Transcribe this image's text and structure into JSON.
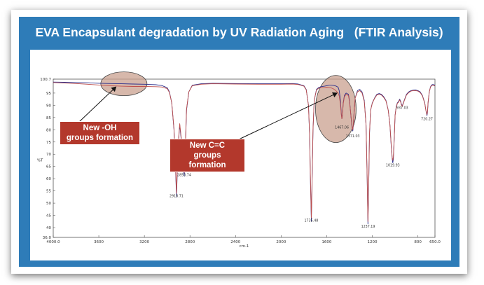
{
  "title": "EVA Encapsulant degradation by UV Radiation Aging   (FTIR Analysis)",
  "colors": {
    "slide_bg": "#2e7cb8",
    "callout_bg": "#b3382c",
    "highlight": "#c9a08f",
    "series": [
      "#2b2f8c",
      "#c0504d"
    ]
  },
  "chart_data": {
    "type": "line",
    "xlabel": "cm-1",
    "ylabel": "%T",
    "xlim": [
      4000,
      650
    ],
    "ylim": [
      36.0,
      100.7
    ],
    "x_ticks": [
      "4000.0",
      "3600",
      "3200",
      "2800",
      "2400",
      "2000",
      "1600",
      "1200",
      "800",
      "650.0"
    ],
    "x_tick_values": [
      4000,
      3600,
      3200,
      2800,
      2400,
      2000,
      1600,
      1200,
      800,
      650
    ],
    "y_ticks": [
      "100.7",
      "95",
      "90",
      "85",
      "80",
      "75",
      "70",
      "65",
      "60",
      "55",
      "50",
      "45",
      "40",
      "36.0"
    ],
    "y_tick_values": [
      100.7,
      95,
      90,
      85,
      80,
      75,
      70,
      65,
      60,
      55,
      50,
      45,
      40,
      36.0
    ],
    "peak_labels": [
      {
        "x": 2918.71,
        "y": 52.5,
        "text": "2918.71"
      },
      {
        "x": 2850.74,
        "y": 61.0,
        "text": "2850.74"
      },
      {
        "x": 1735.48,
        "y": 42.5,
        "text": "1735.48"
      },
      {
        "x": 1467.0,
        "y": 80.5,
        "text": "1467.06"
      },
      {
        "x": 1371.0,
        "y": 77.0,
        "text": "1371.03"
      },
      {
        "x": 1237.0,
        "y": 40.0,
        "text": "1237.19"
      },
      {
        "x": 1019.93,
        "y": 65.0,
        "text": "1019.93"
      },
      {
        "x": 937.0,
        "y": 88.5,
        "text": "937.03"
      },
      {
        "x": 720.27,
        "y": 84.0,
        "text": "720.27"
      }
    ],
    "series": [
      {
        "x": [
          4000,
          3900,
          3800,
          3700,
          3600,
          3500,
          3400,
          3300,
          3200,
          3100,
          3050,
          3000,
          2980,
          2960,
          2940,
          2930,
          2918,
          2905,
          2890,
          2870,
          2858,
          2850,
          2842,
          2830,
          2810,
          2780,
          2700,
          2600,
          2400,
          2200,
          2000,
          1900,
          1850,
          1800,
          1780,
          1760,
          1750,
          1742,
          1735,
          1728,
          1720,
          1710,
          1690,
          1670,
          1650,
          1620,
          1600,
          1580,
          1560,
          1540,
          1520,
          1500,
          1490,
          1480,
          1472,
          1467,
          1462,
          1455,
          1445,
          1430,
          1410,
          1400,
          1390,
          1380,
          1375,
          1371,
          1366,
          1360,
          1350,
          1330,
          1310,
          1290,
          1270,
          1255,
          1245,
          1238,
          1232,
          1225,
          1215,
          1200,
          1180,
          1160,
          1140,
          1120,
          1100,
          1080,
          1060,
          1045,
          1035,
          1025,
          1020,
          1015,
          1008,
          1000,
          990,
          980,
          970,
          960,
          950,
          945,
          940,
          937,
          932,
          920,
          900,
          880,
          860,
          840,
          820,
          800,
          780,
          760,
          740,
          730,
          724,
          720,
          716,
          710,
          700,
          690,
          680,
          670,
          660,
          650
        ],
        "y": [
          99.5,
          99.4,
          99.3,
          99.2,
          99.0,
          98.9,
          98.8,
          98.7,
          98.6,
          98.4,
          98.1,
          97.2,
          95.5,
          91.0,
          80.0,
          68.0,
          52.5,
          72.0,
          82.0,
          73.0,
          64.0,
          61.0,
          70.0,
          88.0,
          95.5,
          98.2,
          98.8,
          99.0,
          98.9,
          98.8,
          98.8,
          98.9,
          98.7,
          98.0,
          96.5,
          90.0,
          78.0,
          58.0,
          42.5,
          60.0,
          80.0,
          92.0,
          96.5,
          97.3,
          97.6,
          97.8,
          98.0,
          98.2,
          98.2,
          98.1,
          97.9,
          97.4,
          96.0,
          92.0,
          86.5,
          84.5,
          86.0,
          91.0,
          94.0,
          95.0,
          94.5,
          92.0,
          87.0,
          82.0,
          80.0,
          79.5,
          82.0,
          87.0,
          93.0,
          96.0,
          96.5,
          95.5,
          92.0,
          82.0,
          60.0,
          41.5,
          55.0,
          78.0,
          88.0,
          91.0,
          93.0,
          94.5,
          94.8,
          94.5,
          93.5,
          92.0,
          88.0,
          82.0,
          74.0,
          68.0,
          66.5,
          68.0,
          76.0,
          86.0,
          89.5,
          91.0,
          91.5,
          92.5,
          91.5,
          90.5,
          90.0,
          89.8,
          90.5,
          92.0,
          94.5,
          95.5,
          96.0,
          96.2,
          96.3,
          96.0,
          95.5,
          94.0,
          91.0,
          88.0,
          86.5,
          85.8,
          87.0,
          91.0,
          95.5,
          97.5,
          98.3,
          98.5,
          98.4,
          98.2
        ]
      },
      {
        "x": [
          4000,
          3900,
          3800,
          3700,
          3600,
          3500,
          3400,
          3300,
          3200,
          3100,
          3050,
          3000,
          2980,
          2960,
          2940,
          2930,
          2918,
          2905,
          2890,
          2870,
          2858,
          2850,
          2842,
          2830,
          2810,
          2780,
          2700,
          2600,
          2400,
          2200,
          2000,
          1900,
          1850,
          1800,
          1780,
          1760,
          1750,
          1742,
          1735,
          1728,
          1720,
          1710,
          1690,
          1670,
          1650,
          1620,
          1600,
          1580,
          1560,
          1540,
          1520,
          1500,
          1490,
          1480,
          1472,
          1467,
          1462,
          1455,
          1445,
          1430,
          1410,
          1400,
          1390,
          1380,
          1375,
          1371,
          1366,
          1360,
          1350,
          1330,
          1310,
          1290,
          1270,
          1255,
          1245,
          1238,
          1232,
          1225,
          1215,
          1200,
          1180,
          1160,
          1140,
          1120,
          1100,
          1080,
          1060,
          1045,
          1035,
          1025,
          1020,
          1015,
          1008,
          1000,
          990,
          980,
          970,
          960,
          950,
          945,
          940,
          937,
          932,
          920,
          900,
          880,
          860,
          840,
          820,
          800,
          780,
          760,
          740,
          730,
          724,
          720,
          716,
          710,
          700,
          690,
          680,
          670,
          660,
          650
        ],
        "y": [
          99.3,
          99.1,
          98.9,
          98.6,
          98.3,
          98.0,
          97.8,
          97.7,
          97.7,
          97.6,
          97.5,
          96.8,
          95.2,
          91.0,
          80.5,
          69.0,
          54.0,
          73.0,
          82.5,
          74.0,
          65.5,
          62.5,
          71.0,
          88.5,
          95.5,
          98.0,
          98.6,
          98.8,
          98.7,
          98.6,
          98.6,
          98.7,
          98.5,
          97.8,
          96.3,
          90.0,
          78.5,
          59.0,
          44.0,
          61.0,
          80.5,
          92.0,
          96.2,
          97.0,
          97.2,
          97.3,
          97.4,
          97.3,
          97.1,
          96.7,
          96.0,
          95.0,
          93.8,
          90.5,
          86.0,
          84.5,
          86.0,
          90.5,
          93.5,
          94.5,
          94.0,
          91.5,
          87.0,
          82.5,
          80.5,
          80.0,
          82.5,
          87.0,
          93.0,
          95.5,
          96.0,
          95.0,
          91.5,
          82.0,
          60.5,
          42.5,
          56.0,
          78.5,
          88.0,
          90.8,
          92.8,
          94.2,
          94.5,
          94.2,
          93.2,
          91.8,
          88.0,
          82.0,
          74.5,
          68.5,
          67.5,
          69.0,
          76.5,
          86.0,
          89.2,
          90.8,
          91.2,
          92.2,
          91.2,
          90.2,
          89.8,
          89.5,
          90.2,
          91.8,
          94.2,
          95.2,
          95.8,
          96.0,
          96.0,
          95.8,
          95.2,
          93.8,
          90.8,
          88.0,
          86.8,
          86.2,
          87.5,
          91.5,
          95.5,
          97.3,
          98.0,
          98.2,
          98.1,
          97.9
        ]
      }
    ],
    "annotations": [
      {
        "text": "New -OH\ngroups formation",
        "target_x": 3380,
        "target_y": 98.5
      },
      {
        "text": "New C=C\ngroups formation",
        "target_x": 1560,
        "target_y": 95.5
      }
    ]
  }
}
